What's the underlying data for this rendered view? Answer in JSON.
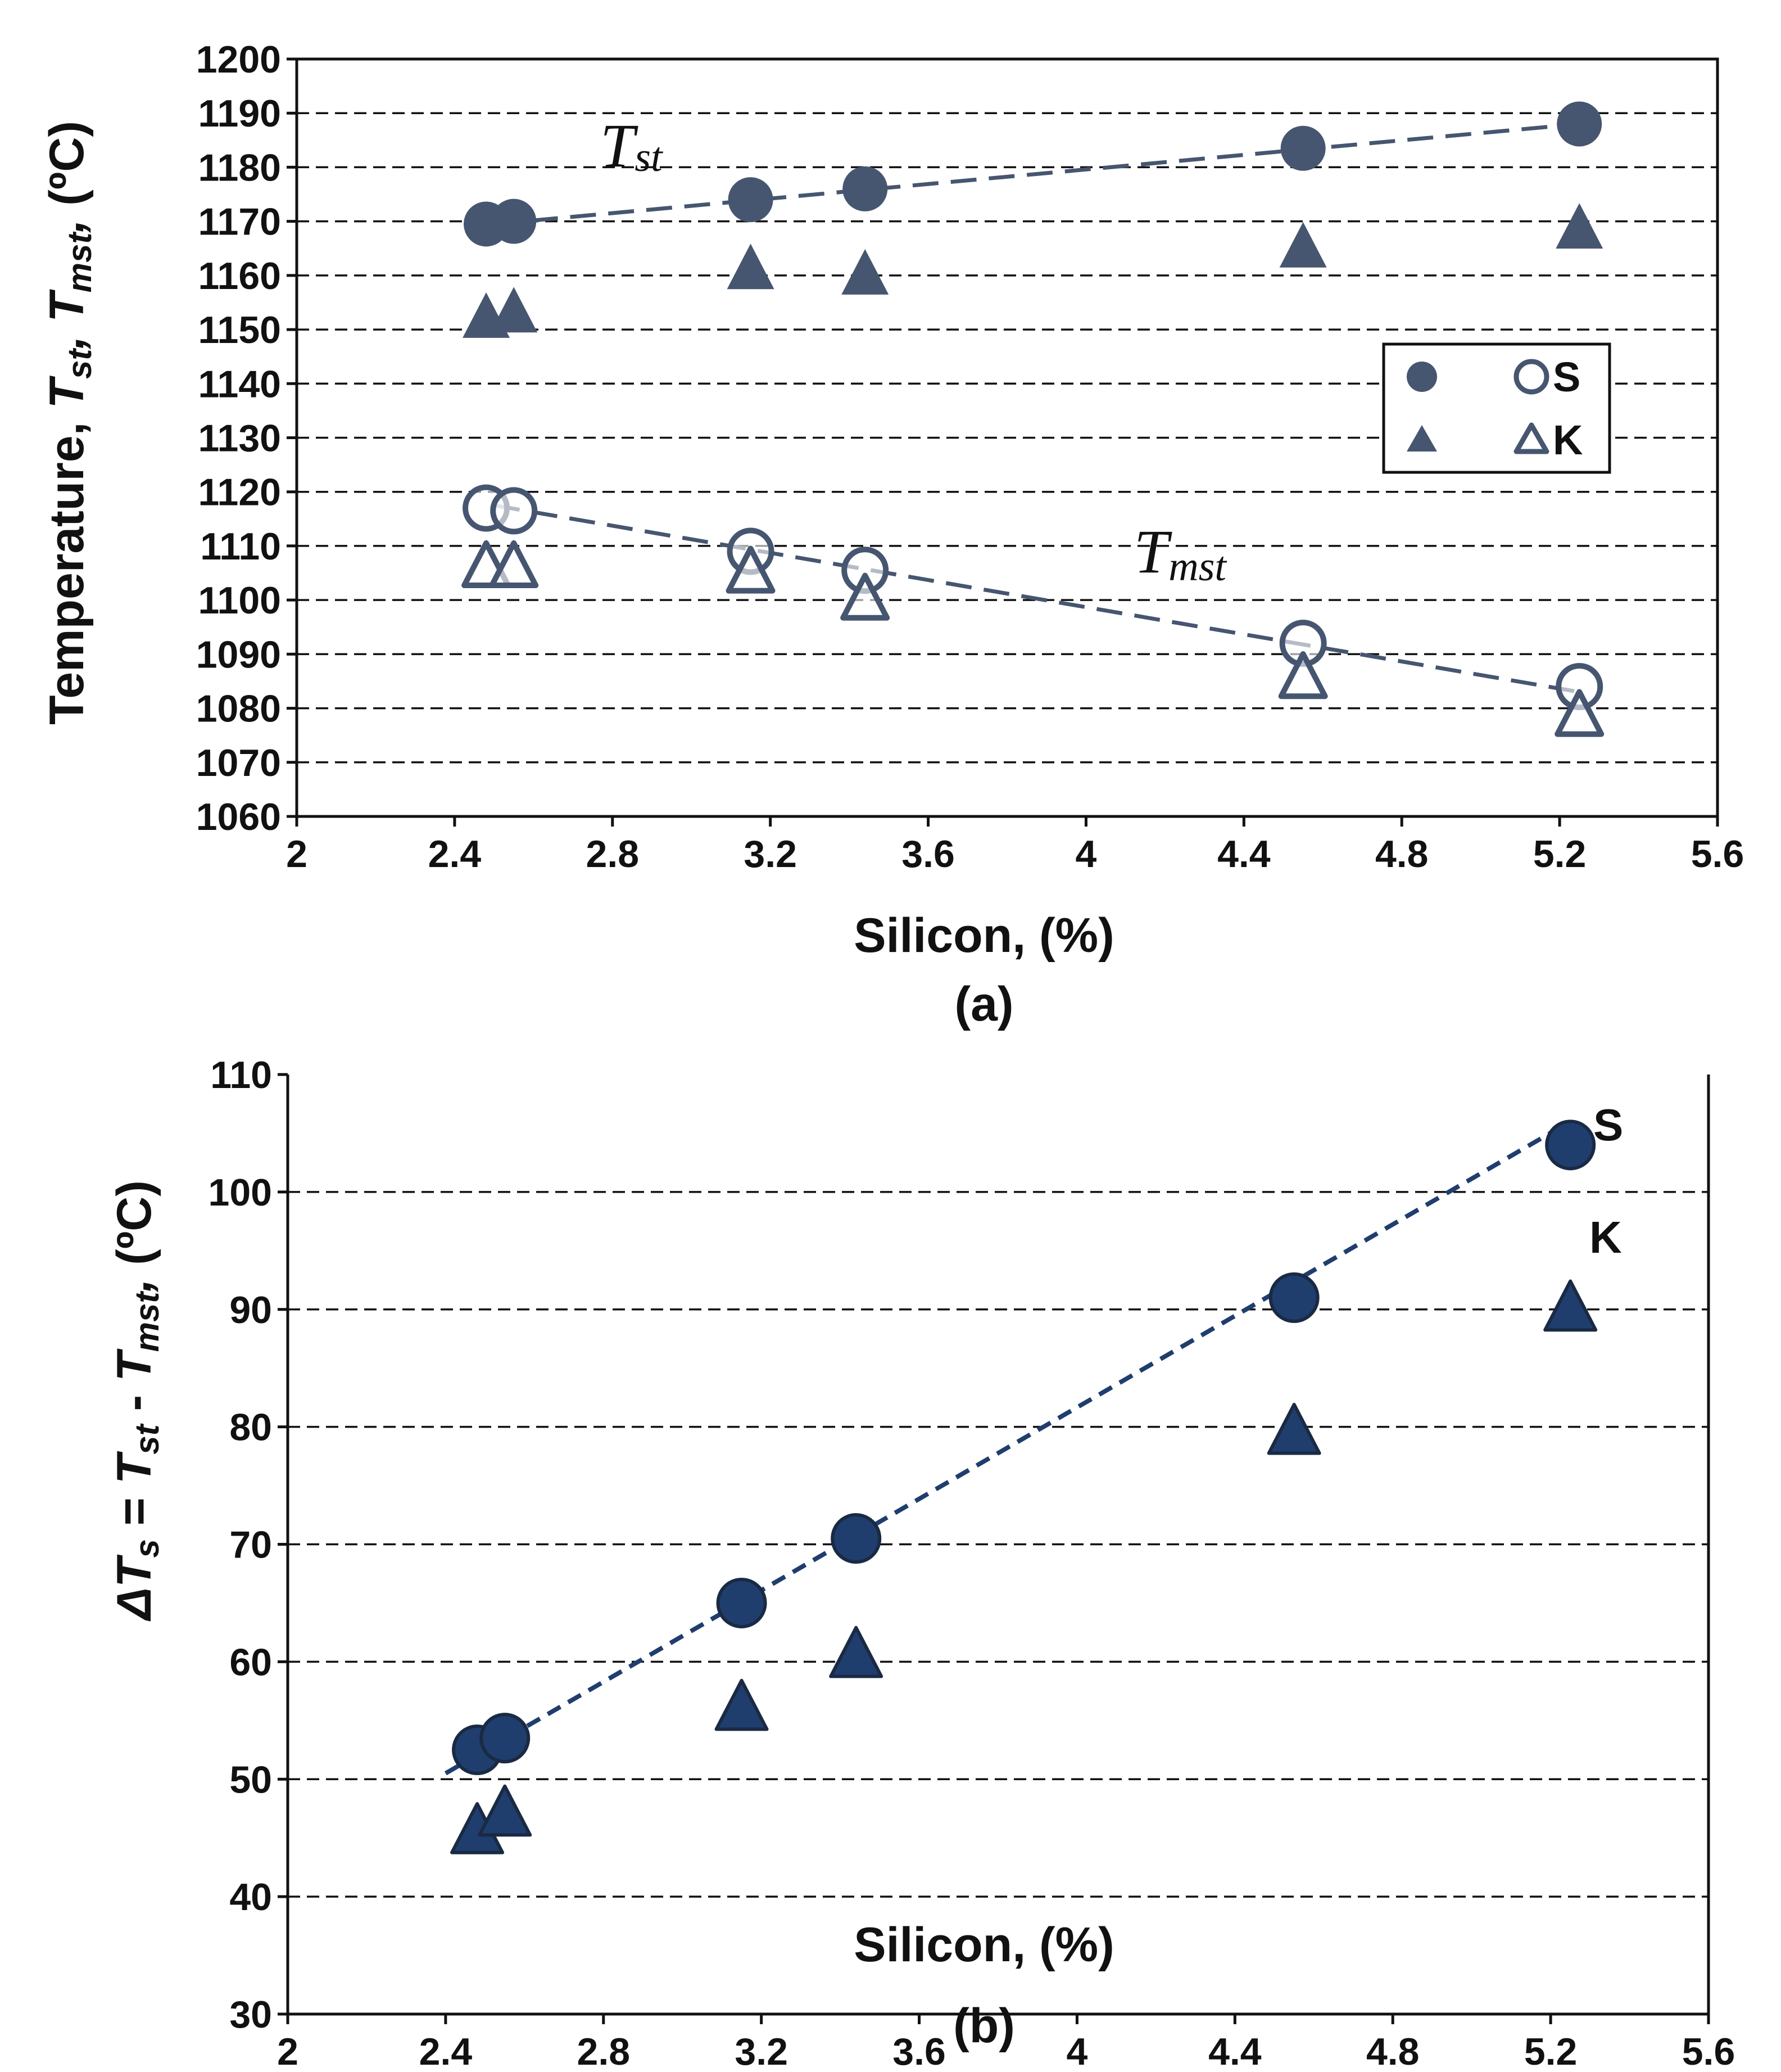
{
  "colors": {
    "upper": "#465670",
    "lower": "#1f3e6e",
    "axis": "#111111",
    "grid": "#111111"
  },
  "chart_data": [
    {
      "type": "scatter",
      "caption": "(a)",
      "xlabel": "Silicon, (%)",
      "ylabel": {
        "prefix": "Temperature, ",
        "t": "T",
        "st": "st",
        "mst": "mst",
        "sep": ", ",
        "comma": ",",
        "unit": " (ºC)"
      },
      "xlim": [
        2,
        5.6
      ],
      "ylim": [
        1060,
        1200
      ],
      "xticks": [
        "2",
        "2.4",
        "2.8",
        "3.2",
        "3.6",
        "4",
        "4.4",
        "4.8",
        "5.2",
        "5.6"
      ],
      "yticks": [
        "1060",
        "1070",
        "1080",
        "1090",
        "1100",
        "1110",
        "1120",
        "1130",
        "1140",
        "1150",
        "1160",
        "1170",
        "1180",
        "1190",
        "1200"
      ],
      "grid": "horizontal-dashed",
      "legend": {
        "position": "right",
        "rows": [
          {
            "label": "S",
            "filled": "circle",
            "open": "circle"
          },
          {
            "label": "K",
            "filled": "triangle",
            "open": "triangle"
          }
        ]
      },
      "annotations": [
        {
          "t": "T",
          "sub": "st"
        },
        {
          "t": "T",
          "sub": "mst"
        }
      ],
      "series": [
        {
          "name": "S Tst",
          "marker": "circle",
          "filled": true,
          "x": [
            2.48,
            2.55,
            3.15,
            3.44,
            4.55,
            5.25
          ],
          "y": [
            1169.5,
            1170,
            1174,
            1176,
            1183.5,
            1188
          ]
        },
        {
          "name": "K Tst",
          "marker": "triangle",
          "filled": true,
          "x": [
            2.48,
            2.55,
            3.15,
            3.44,
            4.55,
            5.25
          ],
          "y": [
            1152,
            1153,
            1161,
            1160,
            1165,
            1168.5
          ]
        },
        {
          "name": "S Tmst",
          "marker": "circle",
          "filled": false,
          "x": [
            2.48,
            2.55,
            3.15,
            3.44,
            4.55,
            5.25
          ],
          "y": [
            1117,
            1116.5,
            1109,
            1105.5,
            1092,
            1084
          ]
        },
        {
          "name": "K Tmst",
          "marker": "triangle",
          "filled": false,
          "x": [
            2.48,
            2.55,
            3.15,
            3.44,
            4.55,
            5.25
          ],
          "y": [
            1106,
            1106,
            1105,
            1100,
            1085.5,
            1078.5
          ]
        }
      ],
      "trendlines": [
        {
          "name": "Tst trend",
          "x": [
            2.5,
            5.25
          ],
          "y": [
            1169.5,
            1188
          ]
        },
        {
          "name": "Tmst trend",
          "x": [
            2.5,
            5.25
          ],
          "y": [
            1117.5,
            1083
          ]
        }
      ]
    },
    {
      "type": "scatter",
      "caption": "(b)",
      "xlabel": "Silicon, (%)",
      "ylabel": {
        "delta": "ΔT",
        "s": "s",
        "eq": " = ",
        "t": "T",
        "st": "st",
        "minus": " - ",
        "mst": "mst",
        "comma": ",",
        "unit": " (ºC)"
      },
      "xlim": [
        2,
        5.6
      ],
      "ylim": [
        30,
        110
      ],
      "xticks": [
        "2",
        "2.4",
        "2.8",
        "3.2",
        "3.6",
        "4",
        "4.4",
        "4.8",
        "5.2",
        "5.6"
      ],
      "yticks": [
        "30",
        "40",
        "50",
        "60",
        "70",
        "80",
        "90",
        "100",
        "110"
      ],
      "grid": "horizontal-dashed",
      "labels": {
        "S": "S",
        "K": "K"
      },
      "series": [
        {
          "name": "S",
          "marker": "circle",
          "filled": true,
          "x": [
            2.48,
            2.55,
            3.15,
            3.44,
            4.55,
            5.25
          ],
          "y": [
            52.5,
            53.5,
            65,
            70.5,
            91,
            104
          ]
        },
        {
          "name": "K",
          "marker": "triangle",
          "filled": true,
          "x": [
            2.48,
            2.55,
            3.15,
            3.44,
            4.55,
            5.25
          ],
          "y": [
            45.5,
            47,
            56,
            60.5,
            79.5,
            90
          ]
        }
      ],
      "trendlines": [
        {
          "name": "S trend",
          "x": [
            2.4,
            5.25
          ],
          "y": [
            50.5,
            106
          ]
        }
      ]
    }
  ]
}
